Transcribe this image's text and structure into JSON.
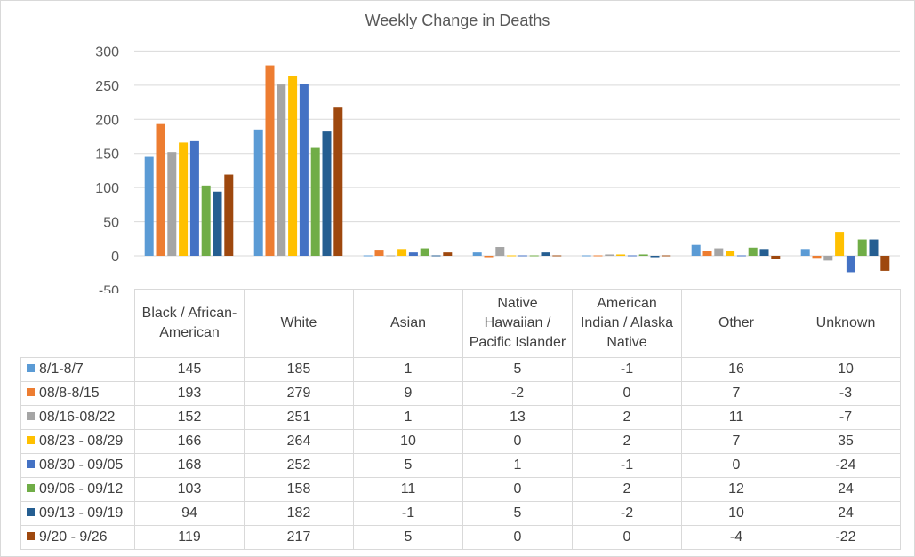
{
  "chart_data": {
    "type": "bar",
    "title": "Weekly Change in Deaths",
    "categories": [
      "Black / African-American",
      "White",
      "Asian",
      "Native Hawaiian / Pacific Islander",
      "American Indian / Alaska Native",
      "Other",
      "Unknown"
    ],
    "series": [
      {
        "name": "8/1-8/7",
        "color": "#5B9BD5",
        "values": [
          145,
          185,
          1,
          5,
          -1,
          16,
          10
        ]
      },
      {
        "name": "08/8-8/15",
        "color": "#ED7D31",
        "values": [
          193,
          279,
          9,
          -2,
          0,
          7,
          -3
        ]
      },
      {
        "name": "08/16-08/22",
        "color": "#A5A5A5",
        "values": [
          152,
          251,
          1,
          13,
          2,
          11,
          -7
        ]
      },
      {
        "name": "08/23 - 08/29",
        "color": "#FFC000",
        "values": [
          166,
          264,
          10,
          0,
          2,
          7,
          35
        ]
      },
      {
        "name": "08/30 - 09/05",
        "color": "#4472C4",
        "values": [
          168,
          252,
          5,
          1,
          -1,
          0,
          -24
        ]
      },
      {
        "name": "09/06 - 09/12",
        "color": "#70AD47",
        "values": [
          103,
          158,
          11,
          0,
          2,
          12,
          24
        ]
      },
      {
        "name": "09/13 - 09/19",
        "color": "#255E91",
        "values": [
          94,
          182,
          -1,
          5,
          -2,
          10,
          24
        ]
      },
      {
        "name": "9/20 - 9/26",
        "color": "#9E480E",
        "values": [
          119,
          217,
          5,
          0,
          0,
          -4,
          -22
        ]
      }
    ],
    "ylim": [
      -50,
      300
    ],
    "yticks": [
      "-50",
      "0",
      "50",
      "100",
      "150",
      "200",
      "250",
      "300"
    ],
    "xlabel": "",
    "ylabel": "",
    "grid": true,
    "legend": "data table with legend keys below the chart"
  }
}
